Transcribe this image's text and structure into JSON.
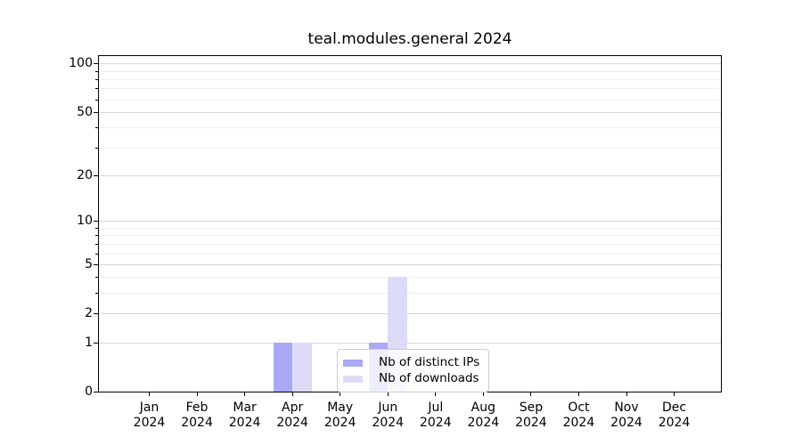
{
  "title": "teal.modules.general 2024",
  "chart_data": {
    "type": "bar",
    "title": "teal.modules.general 2024",
    "categories": [
      "Jan 2024",
      "Feb 2024",
      "Mar 2024",
      "Apr 2024",
      "May 2024",
      "Jun 2024",
      "Jul 2024",
      "Aug 2024",
      "Sep 2024",
      "Oct 2024",
      "Nov 2024",
      "Dec 2024"
    ],
    "series": [
      {
        "name": "Nb of distinct IPs",
        "color": "#a9a9f7",
        "values": [
          0,
          0,
          0,
          1,
          0,
          1,
          0,
          0,
          0,
          0,
          0,
          0
        ]
      },
      {
        "name": "Nb of downloads",
        "color": "#dcdcf9",
        "values": [
          0,
          0,
          0,
          1,
          0,
          4,
          0,
          0,
          0,
          0,
          0,
          0
        ]
      }
    ],
    "y_axis": {
      "scale": "log1p",
      "major_ticks": [
        0,
        1,
        2,
        5,
        10,
        20,
        50,
        100
      ],
      "minor_gridlines": [
        3,
        4,
        6,
        7,
        8,
        9,
        30,
        40,
        60,
        70,
        80,
        90
      ],
      "top_value": 111
    },
    "x_axis": {
      "tick_label_year": "2024"
    },
    "legend": {
      "position": "lower center",
      "entries": [
        "Nb of distinct IPs",
        "Nb of downloads"
      ]
    },
    "grid": "horizontal",
    "colors": {
      "grid_major": "#d8d8d8",
      "grid_minor": "#eeeeee",
      "spine": "#000000",
      "background": "#ffffff"
    }
  }
}
